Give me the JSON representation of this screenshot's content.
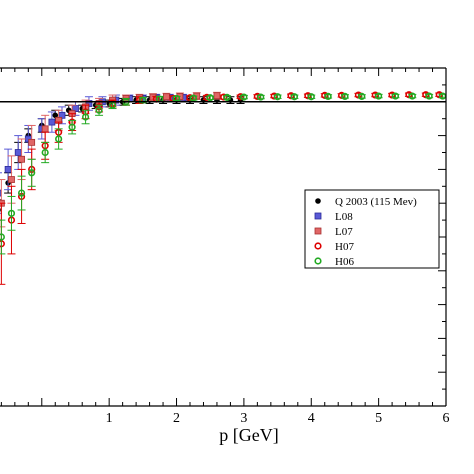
{
  "chart_data": {
    "type": "scatter",
    "title": "",
    "xlabel": "p [GeV]",
    "ylabel": "",
    "xlim": [
      -0.65,
      6.0
    ],
    "ylim": [
      0.0,
      1.0
    ],
    "x_ticks": [
      1,
      2,
      3,
      4,
      5,
      6
    ],
    "x_tick_labels": [
      "1",
      "2",
      "3",
      "4",
      "5",
      "6"
    ],
    "reference_line_y": 0.9,
    "grid": false,
    "legend_position": "right",
    "series": [
      {
        "name": "Q 2003 (115 Mev)",
        "color": "#000000",
        "marker": "circle-filled",
        "points": [
          {
            "x": -0.65,
            "y": 0.58,
            "err": 0.03
          },
          {
            "x": -0.5,
            "y": 0.66,
            "err": 0.03
          },
          {
            "x": -0.35,
            "y": 0.75,
            "err": 0.03
          },
          {
            "x": -0.2,
            "y": 0.8,
            "err": 0.02
          },
          {
            "x": 0.0,
            "y": 0.83,
            "err": 0.02
          },
          {
            "x": 0.2,
            "y": 0.86,
            "err": 0.015
          },
          {
            "x": 0.4,
            "y": 0.875,
            "err": 0.015
          },
          {
            "x": 0.6,
            "y": 0.88,
            "err": 0.01
          },
          {
            "x": 0.8,
            "y": 0.89,
            "err": 0.01
          },
          {
            "x": 1.0,
            "y": 0.895,
            "err": 0.01
          },
          {
            "x": 1.2,
            "y": 0.9,
            "err": 0.01
          },
          {
            "x": 1.4,
            "y": 0.905,
            "err": 0.01
          },
          {
            "x": 1.6,
            "y": 0.905,
            "err": 0.01
          },
          {
            "x": 1.8,
            "y": 0.905,
            "err": 0.01
          },
          {
            "x": 2.0,
            "y": 0.905,
            "err": 0.01
          },
          {
            "x": 2.2,
            "y": 0.905,
            "err": 0.01
          },
          {
            "x": 2.4,
            "y": 0.905,
            "err": 0.01
          },
          {
            "x": 2.6,
            "y": 0.905,
            "err": 0.01
          },
          {
            "x": 2.8,
            "y": 0.905,
            "err": 0.01
          },
          {
            "x": 2.95,
            "y": 0.905,
            "err": 0.01
          }
        ]
      },
      {
        "name": "L08",
        "color": "#5a5ad6",
        "marker": "square",
        "points": [
          {
            "x": -0.65,
            "y": 0.63,
            "err": 0.06
          },
          {
            "x": -0.5,
            "y": 0.7,
            "err": 0.06
          },
          {
            "x": -0.35,
            "y": 0.75,
            "err": 0.05
          },
          {
            "x": -0.2,
            "y": 0.79,
            "err": 0.04
          },
          {
            "x": 0.0,
            "y": 0.82,
            "err": 0.03
          },
          {
            "x": 0.15,
            "y": 0.84,
            "err": 0.03
          },
          {
            "x": 0.3,
            "y": 0.86,
            "err": 0.025
          },
          {
            "x": 0.5,
            "y": 0.88,
            "err": 0.02
          },
          {
            "x": 0.7,
            "y": 0.895,
            "err": 0.02
          },
          {
            "x": 0.9,
            "y": 0.9,
            "err": 0.015
          },
          {
            "x": 1.1,
            "y": 0.905,
            "err": 0.015
          },
          {
            "x": 1.3,
            "y": 0.91,
            "err": 0.01
          },
          {
            "x": 1.5,
            "y": 0.91,
            "err": 0.01
          },
          {
            "x": 1.7,
            "y": 0.912,
            "err": 0.01
          },
          {
            "x": 1.9,
            "y": 0.912,
            "err": 0.01
          },
          {
            "x": 2.1,
            "y": 0.912,
            "err": 0.01
          }
        ]
      },
      {
        "name": "L07",
        "color": "#e06666",
        "marker": "square",
        "points": [
          {
            "x": -0.6,
            "y": 0.6,
            "err": 0.07
          },
          {
            "x": -0.45,
            "y": 0.67,
            "err": 0.07
          },
          {
            "x": -0.3,
            "y": 0.73,
            "err": 0.06
          },
          {
            "x": -0.15,
            "y": 0.78,
            "err": 0.05
          },
          {
            "x": 0.05,
            "y": 0.82,
            "err": 0.04
          },
          {
            "x": 0.25,
            "y": 0.845,
            "err": 0.03
          },
          {
            "x": 0.45,
            "y": 0.865,
            "err": 0.025
          },
          {
            "x": 0.65,
            "y": 0.885,
            "err": 0.02
          },
          {
            "x": 0.85,
            "y": 0.895,
            "err": 0.015
          },
          {
            "x": 1.05,
            "y": 0.905,
            "err": 0.015
          },
          {
            "x": 1.25,
            "y": 0.91,
            "err": 0.01
          },
          {
            "x": 1.45,
            "y": 0.912,
            "err": 0.01
          },
          {
            "x": 1.65,
            "y": 0.914,
            "err": 0.01
          },
          {
            "x": 1.85,
            "y": 0.915,
            "err": 0.01
          },
          {
            "x": 2.05,
            "y": 0.916,
            "err": 0.01
          },
          {
            "x": 2.3,
            "y": 0.917,
            "err": 0.01
          },
          {
            "x": 2.6,
            "y": 0.918,
            "err": 0.01
          }
        ]
      },
      {
        "name": "H07",
        "color": "#dd0000",
        "marker": "circle-open",
        "points": [
          {
            "x": -0.6,
            "y": 0.48,
            "err": 0.12
          },
          {
            "x": -0.45,
            "y": 0.55,
            "err": 0.1
          },
          {
            "x": -0.3,
            "y": 0.62,
            "err": 0.08
          },
          {
            "x": -0.15,
            "y": 0.7,
            "err": 0.06
          },
          {
            "x": 0.05,
            "y": 0.77,
            "err": 0.04
          },
          {
            "x": 0.25,
            "y": 0.81,
            "err": 0.03
          },
          {
            "x": 0.45,
            "y": 0.84,
            "err": 0.025
          },
          {
            "x": 0.65,
            "y": 0.87,
            "err": 0.02
          },
          {
            "x": 0.85,
            "y": 0.885,
            "err": 0.015
          },
          {
            "x": 1.05,
            "y": 0.895,
            "err": 0.01
          },
          {
            "x": 1.25,
            "y": 0.9,
            "err": 0.01
          },
          {
            "x": 1.45,
            "y": 0.905,
            "err": 0.01
          },
          {
            "x": 1.7,
            "y": 0.908,
            "err": 0.008
          },
          {
            "x": 1.95,
            "y": 0.91,
            "err": 0.008
          },
          {
            "x": 2.2,
            "y": 0.912,
            "err": 0.006
          },
          {
            "x": 2.45,
            "y": 0.913,
            "err": 0.006
          },
          {
            "x": 2.7,
            "y": 0.914,
            "err": 0.006
          },
          {
            "x": 2.95,
            "y": 0.915,
            "err": 0.005
          },
          {
            "x": 3.2,
            "y": 0.916,
            "err": 0.005
          },
          {
            "x": 3.45,
            "y": 0.917,
            "err": 0.005
          },
          {
            "x": 3.7,
            "y": 0.918,
            "err": 0.005
          },
          {
            "x": 3.95,
            "y": 0.918,
            "err": 0.005
          },
          {
            "x": 4.2,
            "y": 0.919,
            "err": 0.005
          },
          {
            "x": 4.45,
            "y": 0.919,
            "err": 0.005
          },
          {
            "x": 4.7,
            "y": 0.92,
            "err": 0.005
          },
          {
            "x": 4.95,
            "y": 0.92,
            "err": 0.005
          },
          {
            "x": 5.2,
            "y": 0.92,
            "err": 0.005
          },
          {
            "x": 5.45,
            "y": 0.921,
            "err": 0.005
          },
          {
            "x": 5.7,
            "y": 0.921,
            "err": 0.005
          },
          {
            "x": 5.9,
            "y": 0.921,
            "err": 0.005
          }
        ]
      },
      {
        "name": "H06",
        "color": "#22aa22",
        "marker": "circle-open",
        "points": [
          {
            "x": -0.6,
            "y": 0.5,
            "err": 0.05
          },
          {
            "x": -0.45,
            "y": 0.57,
            "err": 0.05
          },
          {
            "x": -0.3,
            "y": 0.63,
            "err": 0.05
          },
          {
            "x": -0.15,
            "y": 0.69,
            "err": 0.04
          },
          {
            "x": 0.05,
            "y": 0.75,
            "err": 0.03
          },
          {
            "x": 0.25,
            "y": 0.79,
            "err": 0.03
          },
          {
            "x": 0.45,
            "y": 0.825,
            "err": 0.02
          },
          {
            "x": 0.65,
            "y": 0.855,
            "err": 0.02
          },
          {
            "x": 0.85,
            "y": 0.875,
            "err": 0.015
          },
          {
            "x": 1.05,
            "y": 0.89,
            "err": 0.01
          },
          {
            "x": 1.25,
            "y": 0.9,
            "err": 0.01
          },
          {
            "x": 1.5,
            "y": 0.905,
            "err": 0.008
          },
          {
            "x": 1.75,
            "y": 0.908,
            "err": 0.008
          },
          {
            "x": 2.0,
            "y": 0.91,
            "err": 0.006
          },
          {
            "x": 2.25,
            "y": 0.911,
            "err": 0.006
          },
          {
            "x": 2.5,
            "y": 0.912,
            "err": 0.005
          },
          {
            "x": 2.75,
            "y": 0.913,
            "err": 0.005
          },
          {
            "x": 3.0,
            "y": 0.914,
            "err": 0.005
          },
          {
            "x": 3.25,
            "y": 0.914,
            "err": 0.005
          },
          {
            "x": 3.5,
            "y": 0.915,
            "err": 0.005
          },
          {
            "x": 3.75,
            "y": 0.915,
            "err": 0.005
          },
          {
            "x": 4.0,
            "y": 0.915,
            "err": 0.005
          },
          {
            "x": 4.25,
            "y": 0.916,
            "err": 0.005
          },
          {
            "x": 4.5,
            "y": 0.916,
            "err": 0.005
          },
          {
            "x": 4.75,
            "y": 0.916,
            "err": 0.005
          },
          {
            "x": 5.0,
            "y": 0.917,
            "err": 0.005
          },
          {
            "x": 5.25,
            "y": 0.917,
            "err": 0.005
          },
          {
            "x": 5.5,
            "y": 0.917,
            "err": 0.005
          },
          {
            "x": 5.75,
            "y": 0.917,
            "err": 0.005
          },
          {
            "x": 5.95,
            "y": 0.917,
            "err": 0.005
          }
        ]
      }
    ]
  }
}
